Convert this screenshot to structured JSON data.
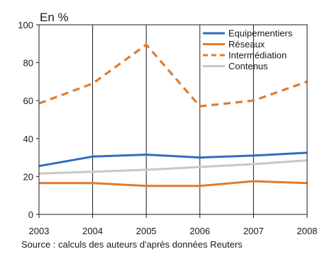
{
  "chart_data": {
    "type": "line",
    "unit_label": "En %",
    "x": [
      "2003",
      "2004",
      "2005",
      "2006",
      "2007",
      "2008"
    ],
    "ylim": [
      0,
      100
    ],
    "yticks": [
      0,
      20,
      40,
      60,
      80,
      100
    ],
    "grid": "vertical",
    "legend_position": "top-right",
    "series": [
      {
        "name": "Equipementiers",
        "color": "#2e6fb8",
        "dash": "solid",
        "values": [
          25.5,
          30.5,
          31.5,
          30,
          31,
          32.5
        ]
      },
      {
        "name": "Réseaux",
        "color": "#e07b2f",
        "dash": "solid",
        "values": [
          16.5,
          16.5,
          15,
          15,
          17.5,
          16.5
        ]
      },
      {
        "name": "Intermédiation",
        "color": "#e07b2f",
        "dash": "dashed",
        "values": [
          58.5,
          69,
          89.5,
          57,
          60,
          70
        ]
      },
      {
        "name": "Contenus",
        "color": "#c8c8c8",
        "dash": "solid",
        "values": [
          21.5,
          22.5,
          23.5,
          25,
          26.5,
          28.5
        ]
      }
    ]
  },
  "source": "Source : calculs des auteurs d'après données Reuters"
}
